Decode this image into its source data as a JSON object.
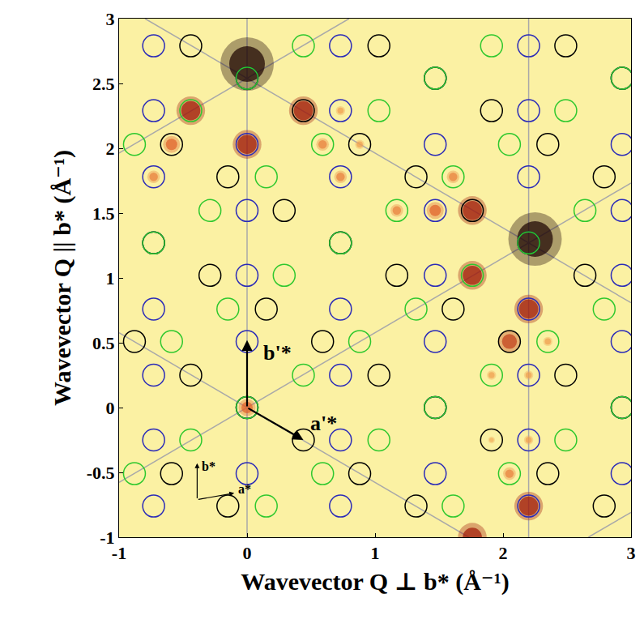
{
  "chart_data": {
    "type": "scatter",
    "xlabel": "Wavevector Q ⊥ b* (Å⁻¹)",
    "ylabel": "Wavevector Q || b* (Å⁻¹)",
    "xlim": [
      -1,
      3
    ],
    "ylim": [
      -1,
      3
    ],
    "xticks": [
      -1,
      0,
      1,
      2,
      3
    ],
    "yticks": [
      -1,
      -0.5,
      0,
      0.5,
      1,
      1.5,
      2,
      2.5,
      3
    ],
    "grid": false,
    "spots": {
      "x": [
        0,
        2.25,
        0,
        0,
        -0.44,
        0.44,
        0.73,
        -0.59,
        0.59,
        0.88,
        -0.73,
        0.73,
        1.17,
        1.47,
        1.76,
        1.61,
        1.76,
        2.2,
        2.05,
        2.35,
        1.91,
        2.2,
        1.91,
        2.2,
        2.05,
        2.2,
        1.76
      ],
      "y": [
        2.65,
        1.3,
        0,
        2.03,
        2.29,
        2.29,
        2.29,
        2.03,
        2.03,
        2.03,
        1.78,
        1.78,
        1.52,
        1.52,
        1.52,
        1.78,
        1.02,
        0.76,
        0.51,
        0.51,
        0.25,
        0.25,
        -0.25,
        -0.25,
        -0.51,
        -0.76,
        -1.0
      ],
      "intensity": [
        10,
        10,
        5,
        7,
        7,
        7,
        3,
        5,
        4,
        3,
        4,
        4,
        4,
        5,
        7,
        4,
        7,
        7,
        6,
        3,
        3,
        3,
        2,
        3,
        4,
        7,
        7
      ]
    },
    "lattice_lines": [
      {
        "x": [
          0,
          0
        ],
        "y": [
          -1,
          3
        ]
      },
      {
        "x": [
          2.2,
          2.2
        ],
        "y": [
          -1,
          3
        ]
      },
      {
        "x": [
          -1,
          3
        ],
        "y": [
          -0.577,
          1.732
        ]
      },
      {
        "x": [
          -1,
          0.797
        ],
        "y": [
          1.963,
          3
        ]
      },
      {
        "x": [
          2.667,
          3
        ],
        "y": [
          -1,
          -0.808
        ]
      },
      {
        "x": [
          -1,
          1.732
        ],
        "y": [
          0.577,
          -1
        ]
      },
      {
        "x": [
          -0.797,
          3
        ],
        "y": [
          3,
          0.808
        ]
      }
    ],
    "series": [
      {
        "color": "#2b2bb8",
        "marker": "circle-open",
        "points": [
          [
            -0.73,
            -0.76
          ],
          [
            0.73,
            -0.76
          ],
          [
            2.2,
            -0.76
          ],
          [
            0,
            -0.51
          ],
          [
            1.47,
            -0.51
          ],
          [
            2.93,
            -0.51
          ],
          [
            -0.73,
            -0.25
          ],
          [
            0.73,
            -0.25
          ],
          [
            2.2,
            -0.25
          ],
          [
            0,
            0
          ],
          [
            1.47,
            0
          ],
          [
            2.93,
            0
          ],
          [
            -0.73,
            0.25
          ],
          [
            0.73,
            0.25
          ],
          [
            2.2,
            0.25
          ],
          [
            0,
            0.51
          ],
          [
            1.47,
            0.51
          ],
          [
            2.93,
            0.51
          ],
          [
            -0.73,
            0.76
          ],
          [
            0.73,
            0.76
          ],
          [
            2.2,
            0.76
          ],
          [
            0,
            1.02
          ],
          [
            1.47,
            1.02
          ],
          [
            2.93,
            1.02
          ],
          [
            -0.73,
            1.27
          ],
          [
            0.73,
            1.27
          ],
          [
            2.2,
            1.27
          ],
          [
            0,
            1.52
          ],
          [
            1.47,
            1.52
          ],
          [
            2.93,
            1.52
          ],
          [
            -0.73,
            1.78
          ],
          [
            0.73,
            1.78
          ],
          [
            2.2,
            1.78
          ],
          [
            0,
            2.03
          ],
          [
            1.47,
            2.03
          ],
          [
            2.93,
            2.03
          ],
          [
            -0.73,
            2.29
          ],
          [
            0.73,
            2.29
          ],
          [
            2.2,
            2.29
          ],
          [
            0,
            2.54
          ],
          [
            1.47,
            2.54
          ],
          [
            2.93,
            2.54
          ],
          [
            -0.73,
            2.79
          ],
          [
            0.73,
            2.79
          ],
          [
            2.2,
            2.79
          ]
        ]
      },
      {
        "color": "#000000",
        "marker": "circle-open",
        "points": [
          [
            -0.15,
            -0.76
          ],
          [
            1.32,
            -0.76
          ],
          [
            2.79,
            -0.76
          ],
          [
            -0.59,
            -0.51
          ],
          [
            0.88,
            -0.51
          ],
          [
            2.35,
            -0.51
          ],
          [
            0.44,
            -0.25
          ],
          [
            1.91,
            -0.25
          ],
          [
            0,
            0
          ],
          [
            1.47,
            0
          ],
          [
            2.93,
            0
          ],
          [
            -0.44,
            0.25
          ],
          [
            1.03,
            0.25
          ],
          [
            2.49,
            0.25
          ],
          [
            -0.88,
            0.51
          ],
          [
            0.59,
            0.51
          ],
          [
            2.05,
            0.51
          ],
          [
            0.15,
            0.76
          ],
          [
            1.61,
            0.76
          ],
          [
            -0.29,
            1.02
          ],
          [
            1.17,
            1.02
          ],
          [
            2.64,
            1.02
          ],
          [
            -0.73,
            1.27
          ],
          [
            0.73,
            1.27
          ],
          [
            2.2,
            1.27
          ],
          [
            0.29,
            1.52
          ],
          [
            1.76,
            1.52
          ],
          [
            -0.15,
            1.78
          ],
          [
            1.32,
            1.78
          ],
          [
            2.79,
            1.78
          ],
          [
            -0.59,
            2.03
          ],
          [
            0.88,
            2.03
          ],
          [
            2.35,
            2.03
          ],
          [
            0.44,
            2.29
          ],
          [
            1.91,
            2.29
          ],
          [
            0,
            2.54
          ],
          [
            1.47,
            2.54
          ],
          [
            2.93,
            2.54
          ],
          [
            -0.44,
            2.79
          ],
          [
            1.03,
            2.79
          ],
          [
            2.49,
            2.79
          ]
        ]
      },
      {
        "color": "#2ec82e",
        "marker": "circle-open",
        "points": [
          [
            0.15,
            -0.76
          ],
          [
            1.61,
            -0.76
          ],
          [
            -0.88,
            -0.51
          ],
          [
            0.59,
            -0.51
          ],
          [
            2.05,
            -0.51
          ],
          [
            -0.44,
            -0.25
          ],
          [
            1.03,
            -0.25
          ],
          [
            2.49,
            -0.25
          ],
          [
            0,
            0
          ],
          [
            1.47,
            0
          ],
          [
            2.93,
            0
          ],
          [
            0.44,
            0.25
          ],
          [
            1.91,
            0.25
          ],
          [
            -0.59,
            0.51
          ],
          [
            0.88,
            0.51
          ],
          [
            2.35,
            0.51
          ],
          [
            -0.15,
            0.76
          ],
          [
            1.32,
            0.76
          ],
          [
            2.79,
            0.76
          ],
          [
            0.29,
            1.02
          ],
          [
            1.76,
            1.02
          ],
          [
            -0.73,
            1.27
          ],
          [
            0.73,
            1.27
          ],
          [
            2.2,
            1.27
          ],
          [
            -0.29,
            1.52
          ],
          [
            1.17,
            1.52
          ],
          [
            2.64,
            1.52
          ],
          [
            0.15,
            1.78
          ],
          [
            1.61,
            1.78
          ],
          [
            -0.88,
            2.03
          ],
          [
            0.59,
            2.03
          ],
          [
            2.05,
            2.03
          ],
          [
            -0.44,
            2.29
          ],
          [
            1.03,
            2.29
          ],
          [
            2.49,
            2.29
          ],
          [
            0,
            2.54
          ],
          [
            1.47,
            2.54
          ],
          [
            2.93,
            2.54
          ],
          [
            0.44,
            2.79
          ],
          [
            1.91,
            2.79
          ]
        ]
      }
    ],
    "arrows": [
      {
        "x": [
          0,
          0
        ],
        "y": [
          0,
          0.52
        ],
        "label": {
          "text": "b'*",
          "x": 0.24,
          "y": 0.42
        }
      },
      {
        "x": [
          0,
          0.44
        ],
        "y": [
          0,
          -0.25
        ],
        "label": {
          "text": "a'*",
          "x": 0.6,
          "y": -0.12
        }
      },
      {
        "x": [
          -0.39,
          -0.39
        ],
        "y": [
          -0.71,
          -0.43
        ],
        "line_style": "thin",
        "label": {
          "text": "b*",
          "x": -0.3,
          "y": -0.45
        }
      },
      {
        "x": [
          -0.39,
          -0.1
        ],
        "y": [
          -0.71,
          -0.66
        ],
        "line_style": "thin",
        "label": {
          "text": "a*",
          "x": -0.02,
          "y": -0.63
        }
      }
    ]
  }
}
